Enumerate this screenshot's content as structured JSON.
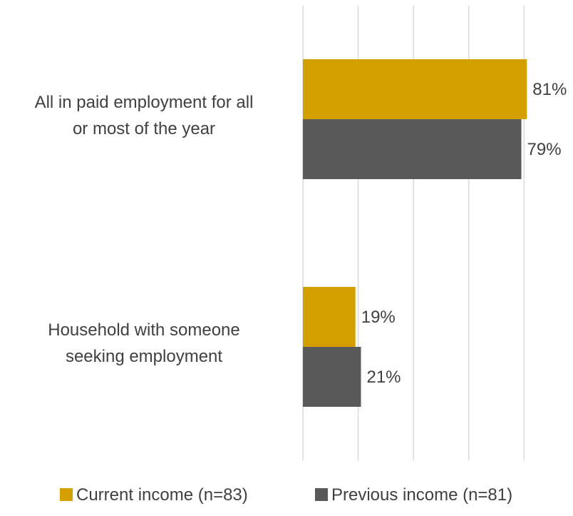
{
  "chart_data": {
    "type": "bar",
    "orientation": "horizontal",
    "categories": [
      [
        "All in paid employment for all",
        "or most of the year"
      ],
      [
        "Household with someone",
        "seeking employment"
      ]
    ],
    "series": [
      {
        "name": "Current income (n=83)",
        "values": [
          81,
          19
        ],
        "labels": [
          "81%",
          "19%"
        ],
        "color": "#D4A000"
      },
      {
        "name": "Previous income (n=81)",
        "values": [
          79,
          21
        ],
        "labels": [
          "79%",
          "21%"
        ],
        "color": "#595959"
      }
    ],
    "xlim": [
      0,
      100
    ],
    "grid": true,
    "legend": "bottom"
  }
}
